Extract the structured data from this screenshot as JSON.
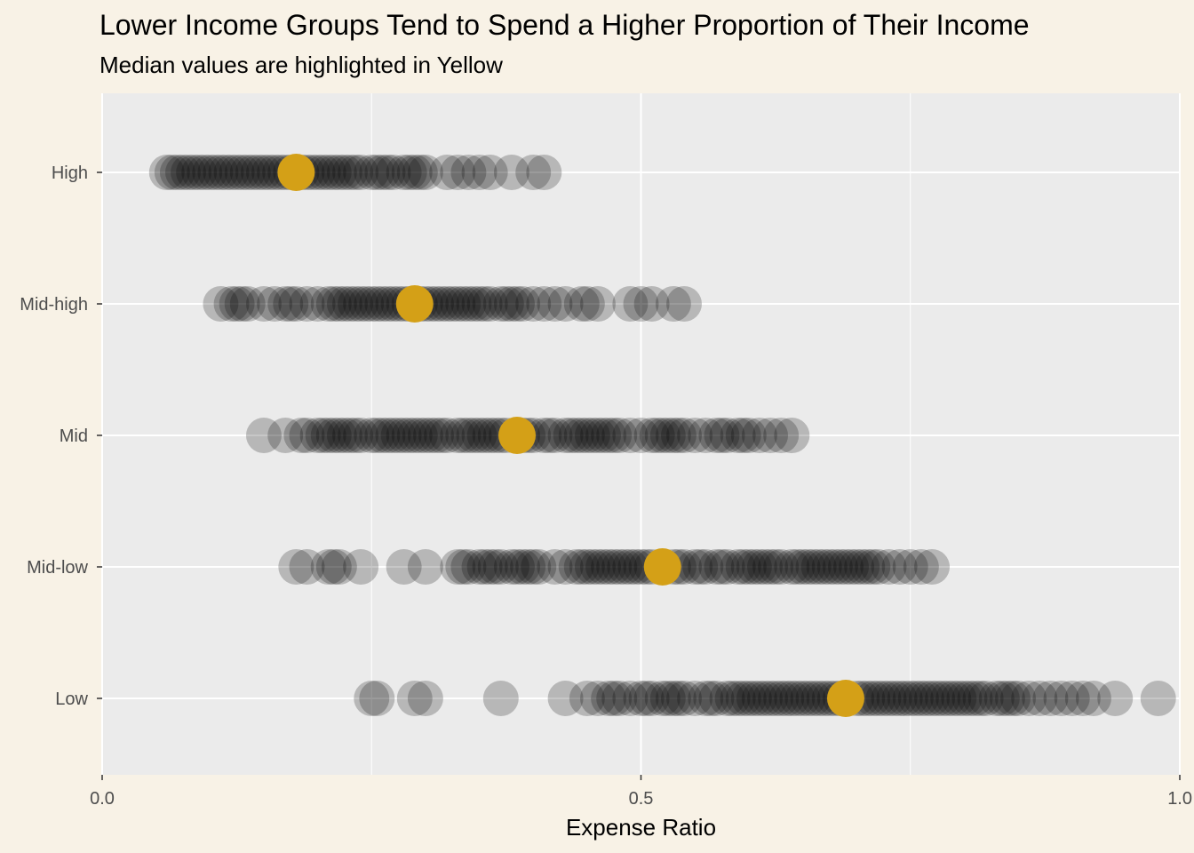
{
  "chart_data": {
    "type": "scatter",
    "title": "Lower Income Groups Tend to Spend a Higher Proportion of Their Income",
    "subtitle": "Median values are highlighted in Yellow",
    "xlabel": "Expense Ratio",
    "ylabel": "",
    "xlim": [
      0.0,
      1.0
    ],
    "x_ticks": [
      "0.0",
      "0.5",
      "1.0"
    ],
    "categories": [
      "High",
      "Mid-high",
      "Mid",
      "Mid-low",
      "Low"
    ],
    "grid": true,
    "series": [
      {
        "category": "High",
        "median": 0.18,
        "values": [
          0.06,
          0.065,
          0.07,
          0.075,
          0.08,
          0.085,
          0.09,
          0.095,
          0.1,
          0.105,
          0.11,
          0.115,
          0.12,
          0.125,
          0.13,
          0.135,
          0.14,
          0.145,
          0.15,
          0.155,
          0.16,
          0.165,
          0.17,
          0.175,
          0.185,
          0.19,
          0.195,
          0.2,
          0.205,
          0.21,
          0.215,
          0.22,
          0.225,
          0.23,
          0.235,
          0.24,
          0.25,
          0.255,
          0.26,
          0.265,
          0.27,
          0.28,
          0.285,
          0.29,
          0.295,
          0.3,
          0.32,
          0.33,
          0.34,
          0.35,
          0.36,
          0.38,
          0.4,
          0.41
        ]
      },
      {
        "category": "Mid-high",
        "median": 0.29,
        "values": [
          0.11,
          0.12,
          0.125,
          0.13,
          0.135,
          0.15,
          0.16,
          0.17,
          0.175,
          0.18,
          0.19,
          0.2,
          0.21,
          0.215,
          0.22,
          0.225,
          0.23,
          0.235,
          0.24,
          0.245,
          0.25,
          0.255,
          0.26,
          0.265,
          0.27,
          0.275,
          0.28,
          0.285,
          0.295,
          0.3,
          0.305,
          0.31,
          0.315,
          0.32,
          0.325,
          0.33,
          0.335,
          0.34,
          0.345,
          0.35,
          0.355,
          0.36,
          0.37,
          0.375,
          0.38,
          0.385,
          0.39,
          0.4,
          0.41,
          0.42,
          0.43,
          0.445,
          0.45,
          0.46,
          0.49,
          0.5,
          0.51,
          0.53,
          0.54
        ]
      },
      {
        "category": "Mid",
        "median": 0.385,
        "values": [
          0.15,
          0.17,
          0.185,
          0.19,
          0.2,
          0.205,
          0.21,
          0.215,
          0.22,
          0.225,
          0.23,
          0.235,
          0.24,
          0.25,
          0.255,
          0.26,
          0.265,
          0.27,
          0.275,
          0.28,
          0.285,
          0.29,
          0.295,
          0.3,
          0.305,
          0.31,
          0.315,
          0.32,
          0.33,
          0.335,
          0.34,
          0.345,
          0.35,
          0.355,
          0.36,
          0.365,
          0.37,
          0.375,
          0.39,
          0.395,
          0.4,
          0.41,
          0.415,
          0.42,
          0.43,
          0.435,
          0.44,
          0.445,
          0.45,
          0.455,
          0.46,
          0.465,
          0.47,
          0.475,
          0.48,
          0.49,
          0.5,
          0.51,
          0.515,
          0.52,
          0.525,
          0.53,
          0.535,
          0.54,
          0.55,
          0.56,
          0.57,
          0.575,
          0.58,
          0.59,
          0.595,
          0.6,
          0.61,
          0.62,
          0.63,
          0.64
        ]
      },
      {
        "category": "Mid-low",
        "median": 0.52,
        "values": [
          0.18,
          0.19,
          0.21,
          0.215,
          0.22,
          0.24,
          0.28,
          0.3,
          0.33,
          0.335,
          0.34,
          0.35,
          0.355,
          0.36,
          0.365,
          0.37,
          0.38,
          0.385,
          0.39,
          0.395,
          0.4,
          0.405,
          0.42,
          0.43,
          0.44,
          0.445,
          0.45,
          0.455,
          0.46,
          0.465,
          0.47,
          0.475,
          0.48,
          0.485,
          0.49,
          0.495,
          0.5,
          0.505,
          0.51,
          0.53,
          0.535,
          0.54,
          0.55,
          0.555,
          0.56,
          0.57,
          0.575,
          0.58,
          0.59,
          0.595,
          0.6,
          0.605,
          0.61,
          0.615,
          0.62,
          0.625,
          0.63,
          0.64,
          0.645,
          0.65,
          0.655,
          0.66,
          0.665,
          0.67,
          0.675,
          0.68,
          0.685,
          0.69,
          0.695,
          0.7,
          0.705,
          0.71,
          0.715,
          0.72,
          0.73,
          0.74,
          0.75,
          0.76,
          0.77
        ]
      },
      {
        "category": "Low",
        "median": 0.69,
        "values": [
          0.25,
          0.255,
          0.29,
          0.3,
          0.37,
          0.43,
          0.45,
          0.46,
          0.47,
          0.475,
          0.48,
          0.49,
          0.5,
          0.505,
          0.51,
          0.52,
          0.525,
          0.53,
          0.535,
          0.54,
          0.55,
          0.56,
          0.565,
          0.57,
          0.58,
          0.585,
          0.59,
          0.595,
          0.6,
          0.605,
          0.61,
          0.615,
          0.62,
          0.625,
          0.63,
          0.635,
          0.64,
          0.645,
          0.65,
          0.655,
          0.66,
          0.665,
          0.67,
          0.675,
          0.68,
          0.685,
          0.7,
          0.705,
          0.71,
          0.715,
          0.72,
          0.725,
          0.73,
          0.735,
          0.74,
          0.745,
          0.75,
          0.755,
          0.76,
          0.765,
          0.77,
          0.775,
          0.78,
          0.785,
          0.79,
          0.795,
          0.8,
          0.805,
          0.81,
          0.815,
          0.82,
          0.83,
          0.835,
          0.84,
          0.845,
          0.85,
          0.86,
          0.87,
          0.88,
          0.89,
          0.9,
          0.91,
          0.92,
          0.94,
          0.98
        ]
      }
    ],
    "colors": {
      "point": "#000000",
      "point_opacity": 0.22,
      "median": "#d4a017",
      "panel": "#ebebeb",
      "grid": "#ffffff",
      "background": "#f8f2e6"
    }
  }
}
